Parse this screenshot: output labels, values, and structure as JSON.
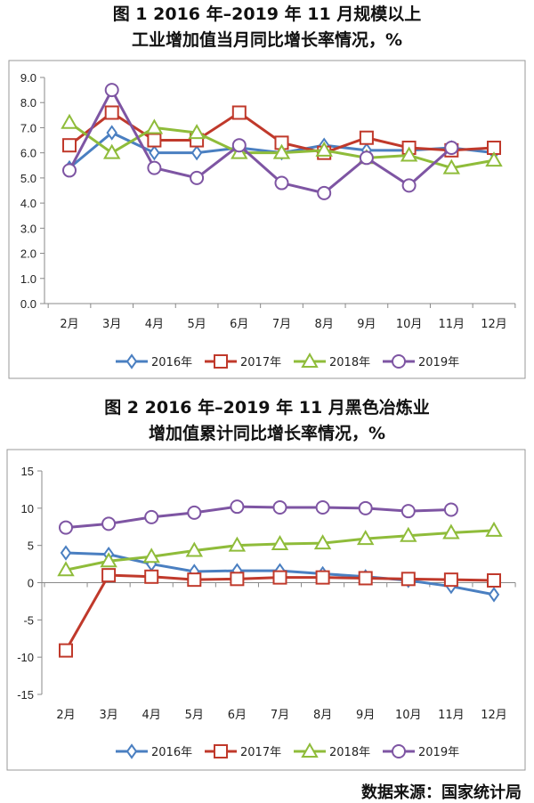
{
  "charts_titles": {
    "c1_line1": "图 1 2016 年–2019 年 11 月规模以上",
    "c1_line2": "工业增加值当月同比增长率情况，%",
    "c2_line1": "图 2 2016 年–2019 年 11 月黑色冶炼业",
    "c2_line2": "增加值累计同比增长率情况，%"
  },
  "source": "数据来源：国家统计局",
  "colors": {
    "2016年": "#4a7fc1",
    "2017年": "#c0392b",
    "2018年": "#8fbc3a",
    "2019年": "#7e55a3"
  },
  "chart_data": [
    {
      "type": "line",
      "categories": [
        "2月",
        "3月",
        "4月",
        "5月",
        "6月",
        "7月",
        "8月",
        "9月",
        "10月",
        "11月",
        "12月"
      ],
      "ylim": [
        0,
        9
      ],
      "yticks": [
        "0.0",
        "1.0",
        "2.0",
        "3.0",
        "4.0",
        "5.0",
        "6.0",
        "7.0",
        "8.0",
        "9.0"
      ],
      "legend": "bottom",
      "series": [
        {
          "name": "2016年",
          "marker": "diamond",
          "values": [
            5.4,
            6.8,
            6.0,
            6.0,
            6.2,
            6.0,
            6.3,
            6.1,
            6.1,
            6.2,
            6.0
          ]
        },
        {
          "name": "2017年",
          "marker": "square",
          "values": [
            6.3,
            7.6,
            6.5,
            6.5,
            7.6,
            6.4,
            6.0,
            6.6,
            6.2,
            6.1,
            6.2
          ]
        },
        {
          "name": "2018年",
          "marker": "triangle",
          "values": [
            7.2,
            6.0,
            7.0,
            6.8,
            6.0,
            6.0,
            6.1,
            5.8,
            5.9,
            5.4,
            5.7
          ]
        },
        {
          "name": "2019年",
          "marker": "circle",
          "values": [
            5.3,
            8.5,
            5.4,
            5.0,
            6.3,
            4.8,
            4.4,
            5.8,
            4.7,
            6.2,
            null
          ]
        }
      ]
    },
    {
      "type": "line",
      "categories": [
        "2月",
        "3月",
        "4月",
        "5月",
        "6月",
        "7月",
        "8月",
        "9月",
        "10月",
        "11月",
        "12月"
      ],
      "ylim": [
        -15,
        15
      ],
      "yticks": [
        "-15",
        "-10",
        "-5",
        "0",
        "5",
        "10",
        "15"
      ],
      "legend": "bottom",
      "series": [
        {
          "name": "2016年",
          "marker": "diamond",
          "values": [
            4.0,
            3.8,
            2.5,
            1.5,
            1.6,
            1.6,
            1.2,
            0.8,
            0.3,
            -0.5,
            -1.6
          ]
        },
        {
          "name": "2017年",
          "marker": "square",
          "values": [
            -9.1,
            1.0,
            0.8,
            0.4,
            0.5,
            0.7,
            0.7,
            0.6,
            0.5,
            0.4,
            0.3
          ]
        },
        {
          "name": "2018年",
          "marker": "triangle",
          "values": [
            1.7,
            2.9,
            3.5,
            4.3,
            5.0,
            5.2,
            5.3,
            5.9,
            6.3,
            6.7,
            7.0
          ]
        },
        {
          "name": "2019年",
          "marker": "circle",
          "values": [
            7.4,
            7.9,
            8.8,
            9.4,
            10.2,
            10.1,
            10.1,
            10.0,
            9.6,
            9.8,
            null
          ]
        }
      ]
    }
  ]
}
